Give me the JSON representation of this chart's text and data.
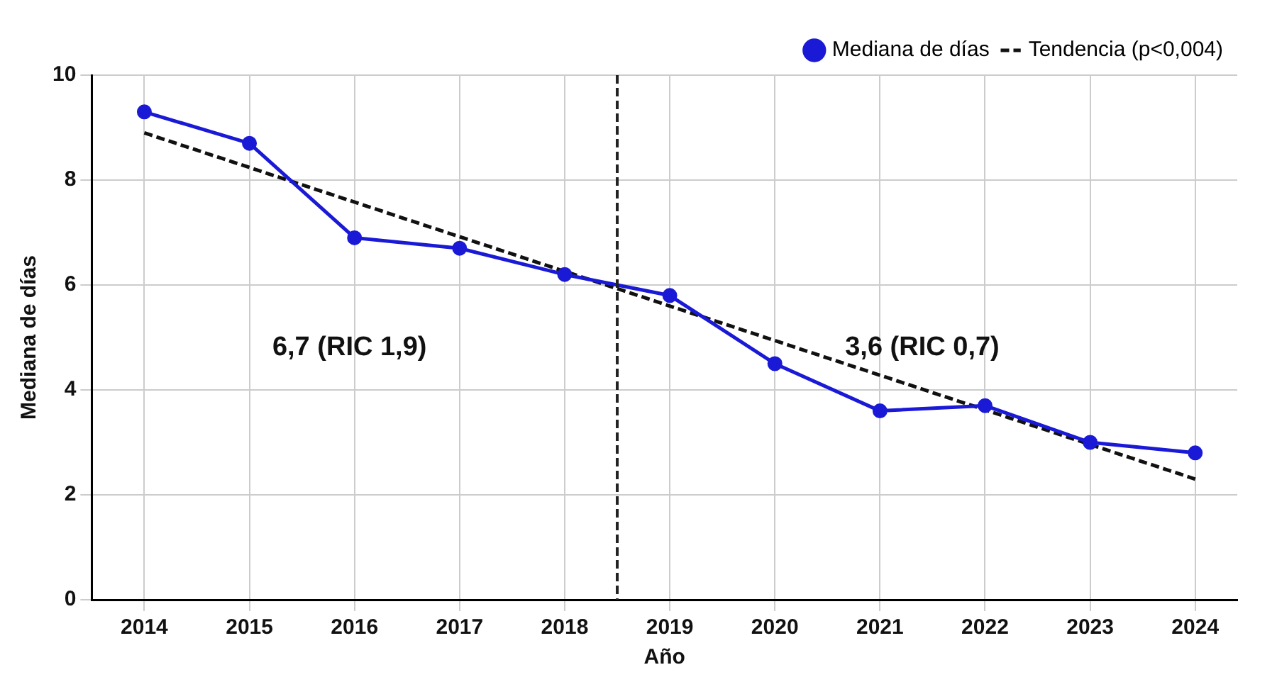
{
  "chart_data": {
    "type": "line",
    "xlabel": "Año",
    "ylabel": "Mediana de días",
    "x": [
      2014,
      2015,
      2016,
      2017,
      2018,
      2019,
      2020,
      2021,
      2022,
      2023,
      2024
    ],
    "series": [
      {
        "name": "Mediana de días",
        "color": "#1a1ad6",
        "values": [
          9.3,
          8.7,
          6.9,
          6.7,
          6.2,
          5.8,
          4.5,
          3.6,
          3.7,
          3.0,
          2.8
        ],
        "marker": "circle",
        "line_style": "solid"
      },
      {
        "name": "Tendencia (p<0,004)",
        "type": "line",
        "color": "#111111",
        "x": [
          2014,
          2024
        ],
        "values": [
          8.9,
          2.3
        ],
        "marker": "none",
        "line_style": "dashed"
      }
    ],
    "xlim": [
      2013.5,
      2024.4
    ],
    "xticks": [
      2014,
      2015,
      2016,
      2017,
      2018,
      2019,
      2020,
      2021,
      2022,
      2023,
      2024
    ],
    "ylim": [
      0,
      10
    ],
    "yticks": [
      0,
      2,
      4,
      6,
      8,
      10
    ],
    "ref_lines": [
      {
        "axis": "x",
        "value": 2018.5,
        "color": "#222222",
        "line_style": "dashed"
      }
    ],
    "annotations": [
      "6,7 (RIC 1,9)",
      "3,6 (RIC 0,7)"
    ],
    "grid": true,
    "legend": "top right"
  }
}
